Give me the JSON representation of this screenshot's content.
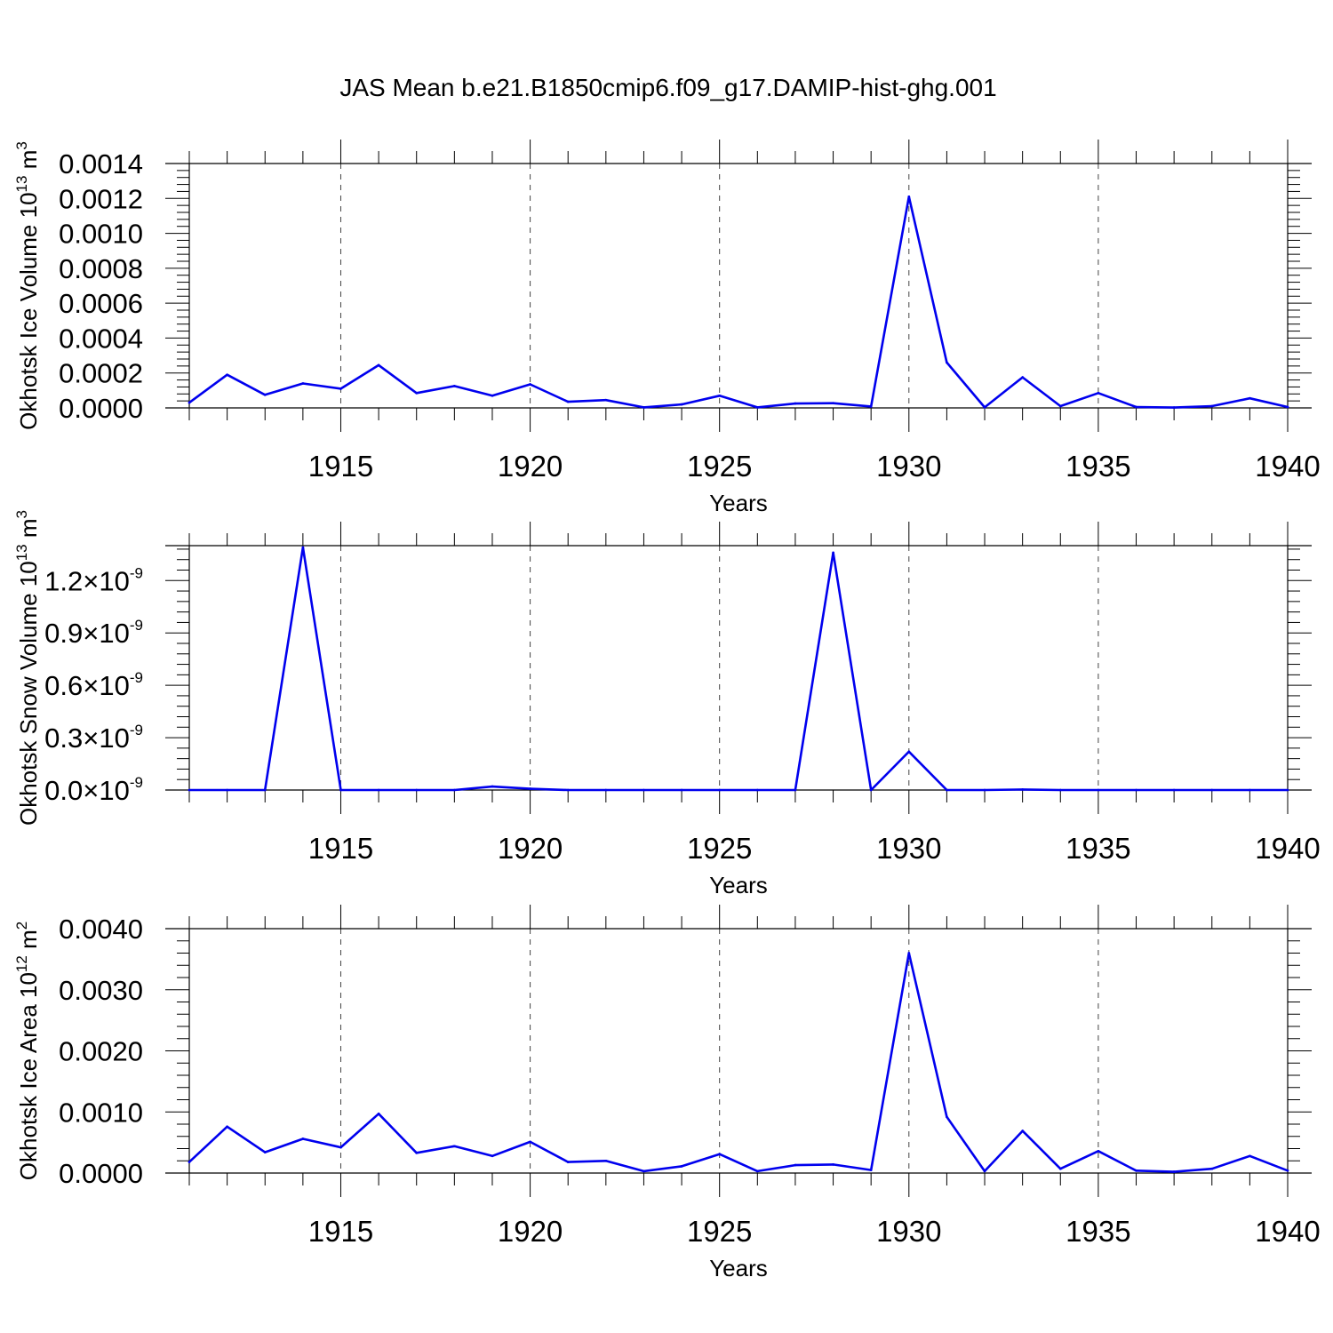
{
  "figure_title": "JAS Mean b.e21.B1850cmip6.f09_g17.DAMIP-hist-ghg.001",
  "colors": {
    "line": "#0000ee",
    "axis": "#000000",
    "grid": "#444444"
  },
  "chart_data": [
    {
      "type": "line",
      "name": "Okhotsk Ice Volume",
      "ylabel": "Okhotsk Ice Volume 10",
      "ylabel_exp": "13",
      "ylabel_unit": " m",
      "ylabel_unit_exp": "3",
      "xlabel": "Years",
      "xlim": [
        1911,
        1940
      ],
      "ylim": [
        0,
        0.0014
      ],
      "yticks": [
        0,
        0.0002,
        0.0004,
        0.0006,
        0.0008,
        0.001,
        0.0012,
        0.0014
      ],
      "ytick_labels": [
        "0.0000",
        "0.0002",
        "0.0004",
        "0.0006",
        "0.0008",
        "0.0010",
        "0.0012",
        "0.0014"
      ],
      "xticks": [
        1915,
        1920,
        1925,
        1930,
        1935,
        1940
      ],
      "xtick_labels": [
        "1915",
        "1920",
        "1925",
        "1930",
        "1935",
        "1940"
      ],
      "x": [
        1911,
        1912,
        1913,
        1914,
        1915,
        1916,
        1917,
        1918,
        1919,
        1920,
        1921,
        1922,
        1923,
        1924,
        1925,
        1926,
        1927,
        1928,
        1929,
        1930,
        1931,
        1932,
        1933,
        1934,
        1935,
        1936,
        1937,
        1938,
        1939,
        1940
      ],
      "values": [
        3e-05,
        0.00019,
        7.5e-05,
        0.00014,
        0.00011,
        0.000245,
        8.5e-05,
        0.000125,
        7e-05,
        0.000135,
        3.5e-05,
        4.5e-05,
        3e-06,
        2e-05,
        7e-05,
        3e-06,
        2.5e-05,
        2.7e-05,
        8e-06,
        0.00121,
        0.00026,
        3e-06,
        0.000175,
        1e-05,
        8.5e-05,
        5e-06,
        2e-06,
        1e-05,
        5.5e-05,
        5e-06
      ]
    },
    {
      "type": "line",
      "name": "Okhotsk Snow Volume",
      "ylabel": "Okhotsk Snow Volume 10",
      "ylabel_exp": "13",
      "ylabel_unit": " m",
      "ylabel_unit_exp": "3",
      "xlabel": "Years",
      "xlim": [
        1911,
        1940
      ],
      "ylim": [
        0,
        1.4e-09
      ],
      "yticks": [
        0,
        3e-10,
        6e-10,
        9e-10,
        1.2e-09
      ],
      "ytick_labels": [
        {
          "mantissa": "0.0",
          "times": "×",
          "base": "10",
          "exp": "-9"
        },
        {
          "mantissa": "0.3",
          "times": "×",
          "base": "10",
          "exp": "-9"
        },
        {
          "mantissa": "0.6",
          "times": "×",
          "base": "10",
          "exp": "-9"
        },
        {
          "mantissa": "0.9",
          "times": "×",
          "base": "10",
          "exp": "-9"
        },
        {
          "mantissa": "1.2",
          "times": "×",
          "base": "10",
          "exp": "-9"
        }
      ],
      "xticks": [
        1915,
        1920,
        1925,
        1930,
        1935,
        1940
      ],
      "xtick_labels": [
        "1915",
        "1920",
        "1925",
        "1930",
        "1935",
        "1940"
      ],
      "x": [
        1911,
        1912,
        1913,
        1914,
        1915,
        1916,
        1917,
        1918,
        1919,
        1920,
        1921,
        1922,
        1923,
        1924,
        1925,
        1926,
        1927,
        1928,
        1929,
        1930,
        1931,
        1932,
        1933,
        1934,
        1935,
        1936,
        1937,
        1938,
        1939,
        1940
      ],
      "values": [
        0,
        0,
        0,
        1.39e-09,
        0,
        0,
        0,
        0,
        2e-11,
        7e-12,
        0,
        0,
        0,
        0,
        0,
        0,
        0,
        1.36e-09,
        0,
        2.2e-10,
        0,
        0,
        3e-12,
        0,
        0,
        0,
        0,
        0,
        0,
        0
      ]
    },
    {
      "type": "line",
      "name": "Okhotsk Ice Area",
      "ylabel": "Okhotsk Ice Area 10",
      "ylabel_exp": "12",
      "ylabel_unit": " m",
      "ylabel_unit_exp": "2",
      "xlabel": "Years",
      "xlim": [
        1911,
        1940
      ],
      "ylim": [
        0,
        0.004
      ],
      "yticks": [
        0,
        0.001,
        0.002,
        0.003,
        0.004
      ],
      "ytick_labels": [
        "0.0000",
        "0.0010",
        "0.0020",
        "0.0030",
        "0.0040"
      ],
      "xticks": [
        1915,
        1920,
        1925,
        1930,
        1935,
        1940
      ],
      "xtick_labels": [
        "1915",
        "1920",
        "1925",
        "1930",
        "1935",
        "1940"
      ],
      "x": [
        1911,
        1912,
        1913,
        1914,
        1915,
        1916,
        1917,
        1918,
        1919,
        1920,
        1921,
        1922,
        1923,
        1924,
        1925,
        1926,
        1927,
        1928,
        1929,
        1930,
        1931,
        1932,
        1933,
        1934,
        1935,
        1936,
        1937,
        1938,
        1939,
        1940
      ],
      "values": [
        0.00018,
        0.00076,
        0.00034,
        0.00056,
        0.00042,
        0.00097,
        0.00033,
        0.00044,
        0.00028,
        0.00051,
        0.00018,
        0.0002,
        3e-05,
        0.00011,
        0.00031,
        3e-05,
        0.00013,
        0.00014,
        5e-05,
        0.0036,
        0.00092,
        3e-05,
        0.00069,
        7e-05,
        0.00036,
        4e-05,
        2e-05,
        7e-05,
        0.00028,
        4e-05
      ]
    }
  ]
}
